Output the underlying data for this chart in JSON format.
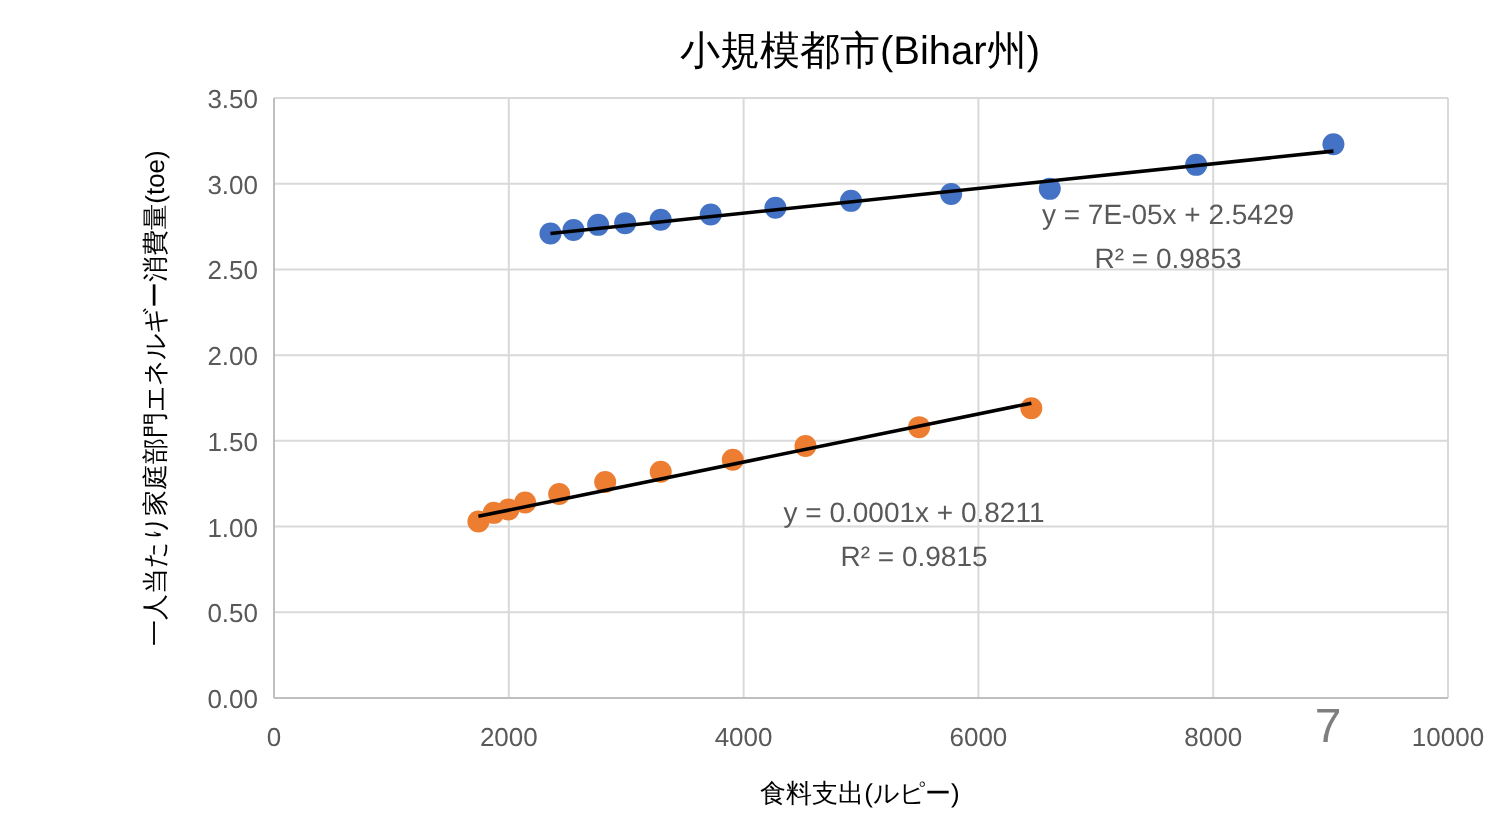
{
  "chart_data": {
    "type": "scatter",
    "title": "小規模都市(Bihar州)",
    "xlabel": "食料支出(ルピー)",
    "ylabel": "一人当たり家庭部門エネルギー消費量(toe)",
    "xlim": [
      0,
      10000
    ],
    "xticks": [
      0,
      2000,
      4000,
      6000,
      8000,
      10000
    ],
    "ylim": [
      0,
      3.5
    ],
    "yticks": [
      {
        "value": 0,
        "label": "0.00"
      },
      {
        "value": 0.5,
        "label": "0.50"
      },
      {
        "value": 1,
        "label": "1.00"
      },
      {
        "value": 1.5,
        "label": "1.50"
      },
      {
        "value": 2,
        "label": "2.00"
      },
      {
        "value": 2.5,
        "label": "2.50"
      },
      {
        "value": 3,
        "label": "3.00"
      },
      {
        "value": 3.5,
        "label": "3.50"
      }
    ],
    "grid": true,
    "marker": "circle",
    "series": [
      {
        "color": "#4472c4",
        "x": [
          2355,
          2551,
          2761,
          2991,
          3294,
          3720,
          4271,
          4915,
          5768,
          6608,
          7855,
          9024
        ],
        "values": [
          2.71,
          2.73,
          2.76,
          2.77,
          2.79,
          2.82,
          2.86,
          2.9,
          2.94,
          2.97,
          3.11,
          3.23
        ]
      },
      {
        "color": "#ed7d31",
        "x": [
          1741,
          1872,
          1997,
          2139,
          2429,
          2821,
          3294,
          3908,
          4527,
          5495,
          6451
        ],
        "values": [
          1.03,
          1.08,
          1.1,
          1.14,
          1.19,
          1.26,
          1.32,
          1.39,
          1.47,
          1.58,
          1.69
        ]
      },
      {
        "type": "line",
        "marker": "none",
        "color": "#000000",
        "x": [
          2355,
          9024
        ],
        "values": [
          2.71,
          3.19
        ]
      },
      {
        "type": "line",
        "marker": "none",
        "color": "#000000",
        "x": [
          1741,
          6451
        ],
        "values": [
          1.06,
          1.72
        ]
      }
    ],
    "annotations": [
      "y = 7E-05x + 2.5429",
      "R² = 0.9853",
      "y = 0.0001x + 0.8211",
      "R² = 0.9815",
      "7"
    ]
  }
}
